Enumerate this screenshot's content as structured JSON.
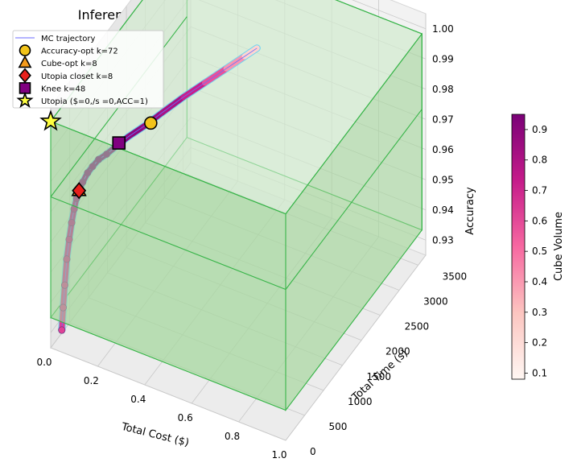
{
  "chart_data": {
    "type": "scatter3d",
    "title": "Inference Scale Optimization in Feasible Space",
    "axes": {
      "x": {
        "label": "Total Cost ($)",
        "range": [
          0.0,
          1.0
        ],
        "ticks": [
          "0.0",
          "0.2",
          "0.4",
          "0.6",
          "0.8",
          "1.0"
        ]
      },
      "y": {
        "label": "Total Time (s)",
        "range": [
          0,
          3700
        ],
        "ticks": [
          "0",
          "500",
          "1000",
          "1500",
          "2000",
          "2500",
          "3000",
          "3500"
        ]
      },
      "z": {
        "label": "Accuracy",
        "range": [
          0.925,
          1.005
        ],
        "ticks": [
          "0.93",
          "0.94",
          "0.95",
          "0.96",
          "0.97",
          "0.98",
          "0.99",
          "1.00"
        ]
      }
    },
    "legend": {
      "position": "top-left",
      "entries": [
        {
          "label": "MC trajectory",
          "marker": "line",
          "color": "#6b6bff"
        },
        {
          "label": "Accuracy-opt k=72",
          "marker": "circle",
          "color": "#f2c41a"
        },
        {
          "label": "Cube-opt k=8",
          "marker": "triangle",
          "color": "#f59b1c"
        },
        {
          "label": "Utopia closet k=8",
          "marker": "diamond",
          "color": "#e8201c"
        },
        {
          "label": "Knee k=48",
          "marker": "square",
          "color": "#800080"
        },
        {
          "label": "Utopia ($=0,/s =0,ACC=1)",
          "marker": "star",
          "color": "#ffff40"
        }
      ]
    },
    "colorbar": {
      "label": "Cube Volume",
      "min": 0.08,
      "max": 0.95,
      "ticks": [
        "0.1",
        "0.2",
        "0.3",
        "0.4",
        "0.5",
        "0.6",
        "0.7",
        "0.8",
        "0.9"
      ]
    },
    "feasible_boxes": [
      {
        "cost": [
          0.0,
          1.0
        ],
        "time": [
          0,
          3600
        ],
        "acc": [
          0.935,
          1.0
        ],
        "faces": "all sides",
        "fill": "#a8d8a0"
      },
      {
        "cost": [
          0.0,
          1.0
        ],
        "time": [
          0,
          3600
        ],
        "acc": [
          0.975,
          1.0
        ],
        "faces": "top and edges",
        "fill": "#dff0dc"
      }
    ],
    "trajectory": [
      {
        "cost": 0.015,
        "time": 200,
        "acc": 0.928,
        "volume": 0.62
      },
      {
        "cost": 0.016,
        "time": 230,
        "acc": 0.935,
        "volume": 0.64
      },
      {
        "cost": 0.018,
        "time": 260,
        "acc": 0.942,
        "volume": 0.66
      },
      {
        "cost": 0.02,
        "time": 300,
        "acc": 0.95,
        "volume": 0.7
      },
      {
        "cost": 0.024,
        "time": 340,
        "acc": 0.956,
        "volume": 0.73
      },
      {
        "cost": 0.028,
        "time": 380,
        "acc": 0.961,
        "volume": 0.77
      },
      {
        "cost": 0.032,
        "time": 420,
        "acc": 0.965,
        "volume": 0.8
      },
      {
        "cost": 0.036,
        "time": 460,
        "acc": 0.968,
        "volume": 0.84
      },
      {
        "cost": 0.04,
        "time": 500,
        "acc": 0.97,
        "volume": 0.87
      },
      {
        "cost": 0.046,
        "time": 560,
        "acc": 0.972,
        "volume": 0.9
      },
      {
        "cost": 0.054,
        "time": 640,
        "acc": 0.974,
        "volume": 0.92
      },
      {
        "cost": 0.062,
        "time": 720,
        "acc": 0.975,
        "volume": 0.93
      },
      {
        "cost": 0.072,
        "time": 820,
        "acc": 0.976,
        "volume": 0.94
      },
      {
        "cost": 0.085,
        "time": 950,
        "acc": 0.976,
        "volume": 0.94
      },
      {
        "cost": 0.1,
        "time": 1100,
        "acc": 0.9765,
        "volume": 0.93
      },
      {
        "cost": 0.12,
        "time": 1300,
        "acc": 0.977,
        "volume": 0.91
      },
      {
        "cost": 0.145,
        "time": 1550,
        "acc": 0.977,
        "volume": 0.88
      },
      {
        "cost": 0.175,
        "time": 1850,
        "acc": 0.9775,
        "volume": 0.84
      },
      {
        "cost": 0.21,
        "time": 2200,
        "acc": 0.978,
        "volume": 0.78
      },
      {
        "cost": 0.245,
        "time": 2550,
        "acc": 0.978,
        "volume": 0.66
      },
      {
        "cost": 0.28,
        "time": 2900,
        "acc": 0.978,
        "volume": 0.5
      },
      {
        "cost": 0.31,
        "time": 3200,
        "acc": 0.978,
        "volume": 0.32
      },
      {
        "cost": 0.33,
        "time": 3400,
        "acc": 0.978,
        "volume": 0.14
      }
    ],
    "optima": [
      {
        "label": "Accuracy-opt k=72",
        "marker": "circle",
        "cost": 0.16,
        "time": 1650,
        "acc": 0.977
      },
      {
        "label": "Cube-opt k=8",
        "marker": "triangle",
        "cost": 0.04,
        "time": 500,
        "acc": 0.97
      },
      {
        "label": "Utopia closet k=8",
        "marker": "diamond",
        "cost": 0.04,
        "time": 500,
        "acc": 0.97
      },
      {
        "label": "Knee k=48",
        "marker": "square",
        "cost": 0.105,
        "time": 1150,
        "acc": 0.977
      },
      {
        "label": "Utopia ($=0,/s =0,ACC=1)",
        "marker": "star",
        "cost": 0.0,
        "time": 0,
        "acc": 1.0
      }
    ]
  }
}
